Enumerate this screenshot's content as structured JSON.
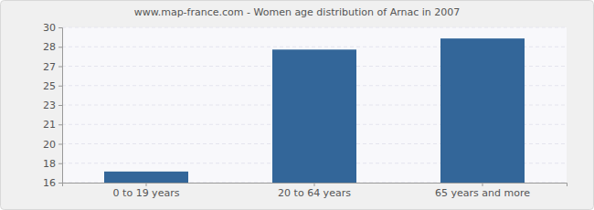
{
  "chart_data": {
    "type": "bar",
    "title": "www.map-france.com - Women age distribution of Arnac in 2007",
    "categories": [
      "0 to 19 years",
      "20 to 64 years",
      "65 years and more"
    ],
    "values": [
      17,
      28,
      29
    ],
    "color": "#336699",
    "ylim": [
      16,
      30
    ],
    "yticks": [
      16,
      {
        "value": 17.75,
        "label": "18"
      },
      {
        "value": 19.5,
        "label": "20"
      },
      {
        "value": 21.25,
        "label": "21"
      },
      23,
      {
        "value": 24.75,
        "label": "25"
      },
      {
        "value": 26.5,
        "label": "27"
      },
      {
        "value": 28.25,
        "label": "28"
      },
      30
    ],
    "grid": true
  }
}
